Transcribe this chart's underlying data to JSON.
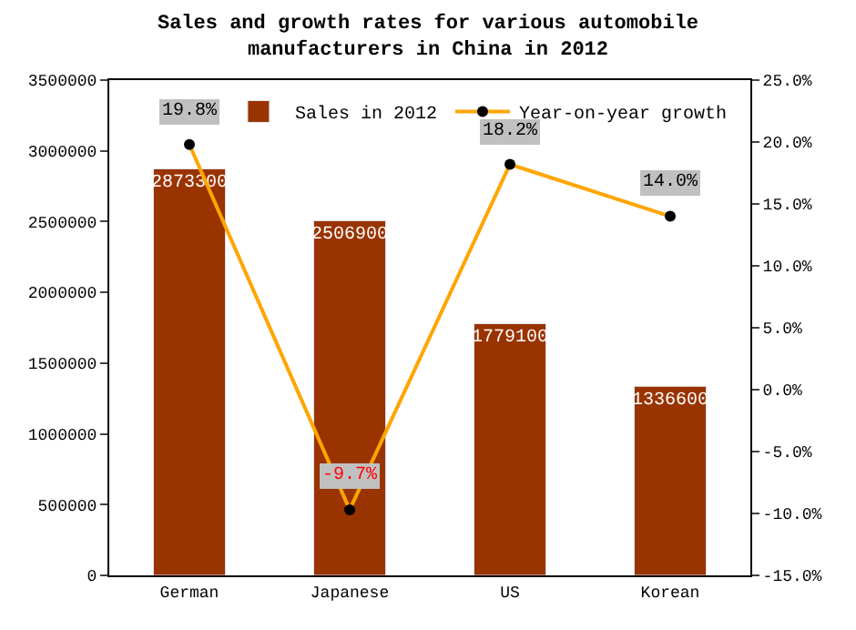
{
  "chart_data": {
    "type": "bar",
    "title": "Sales and growth rates for various automobile manufacturers in China in 2012",
    "categories": [
      "German",
      "Japanese",
      "US",
      "Korean"
    ],
    "series": [
      {
        "name": "Sales in 2012",
        "color": "#993300",
        "values": [
          2873300,
          2506900,
          1779100,
          1336600
        ],
        "data_labels": true
      },
      {
        "name": "Year-on-year growth",
        "type": "line",
        "axis": "y2",
        "color": "#ffa500",
        "marker": "circle",
        "values": [
          19.8,
          -9.7,
          18.2,
          14.0
        ],
        "value_labels": [
          "19.8%",
          "-9.7%",
          "18.2%",
          "14.0%"
        ]
      }
    ],
    "ylim": [
      0,
      3500000
    ],
    "yticks": [
      0,
      500000,
      1000000,
      1500000,
      2000000,
      2500000,
      3000000,
      3500000
    ],
    "y2lim": [
      -15,
      25
    ],
    "y2ticks": [
      {
        "value": -15,
        "label": "-15.0%"
      },
      {
        "value": -10,
        "label": "-10.0%"
      },
      {
        "value": -5,
        "label": "-5.0%"
      },
      {
        "value": 0,
        "label": "0.0%"
      },
      {
        "value": 5,
        "label": "5.0%"
      },
      {
        "value": 10,
        "label": "10.0%"
      },
      {
        "value": 15,
        "label": "15.0%"
      },
      {
        "value": 20,
        "label": "20.0%"
      },
      {
        "value": 25,
        "label": "25.0%"
      }
    ],
    "legend": "top right"
  }
}
